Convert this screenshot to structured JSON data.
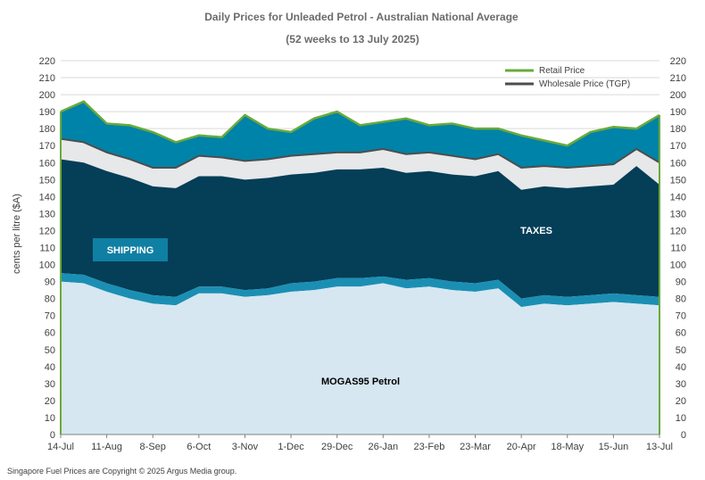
{
  "chart_data": {
    "type": "area",
    "title": "Daily  Prices for Unleaded  Petrol  - Australian  National  Average",
    "subtitle": "(52 weeks to 13 July  2025)",
    "ylabel": "cents per litre ($A)",
    "ylim": [
      0,
      220
    ],
    "yticks": [
      "0",
      "10",
      "20",
      "30",
      "40",
      "50",
      "60",
      "70",
      "80",
      "90",
      "100",
      "110",
      "120",
      "130",
      "140",
      "150",
      "160",
      "170",
      "180",
      "190",
      "200",
      "210",
      "220"
    ],
    "xtick_labels": [
      "14-Jul",
      "11-Aug",
      "8-Sep",
      "6-Oct",
      "3-Nov",
      "1-Dec",
      "29-Dec",
      "26-Jan",
      "23-Feb",
      "23-Mar",
      "20-Apr",
      "18-May",
      "15-Jun",
      "13-Jul"
    ],
    "x": [
      0,
      2,
      4,
      6,
      8,
      10,
      12,
      14,
      16,
      18,
      20,
      22,
      24,
      26,
      28,
      30,
      32,
      34,
      36,
      38,
      40,
      42,
      44,
      46,
      48,
      50,
      52
    ],
    "series": [
      {
        "name": "MOGAS95 Petrol",
        "values": [
          90,
          89,
          84,
          80,
          77,
          76,
          83,
          83,
          81,
          82,
          84,
          85,
          87,
          87,
          89,
          86,
          87,
          85,
          84,
          86,
          75,
          77,
          76,
          77,
          78,
          77,
          76
        ]
      },
      {
        "name": "SHIPPING",
        "values": [
          95,
          94,
          89,
          85,
          82,
          81,
          87,
          87,
          85,
          86,
          89,
          90,
          92,
          92,
          93,
          91,
          92,
          90,
          89,
          91,
          80,
          82,
          81,
          82,
          83,
          82,
          81
        ]
      },
      {
        "name": "Wholesale Price (TGP)",
        "values": [
          174,
          172,
          166,
          162,
          157,
          157,
          164,
          163,
          161,
          162,
          164,
          165,
          166,
          166,
          168,
          165,
          166,
          164,
          162,
          165,
          157,
          158,
          157,
          158,
          159,
          168,
          160
        ]
      },
      {
        "name": "TAXES",
        "values": [
          162,
          160,
          155,
          151,
          146,
          145,
          152,
          152,
          150,
          151,
          153,
          154,
          156,
          156,
          157,
          154,
          155,
          153,
          152,
          155,
          144,
          146,
          145,
          146,
          147,
          158,
          147
        ]
      },
      {
        "name": "Retail Price",
        "values": [
          190,
          196,
          183,
          182,
          178,
          172,
          176,
          175,
          188,
          180,
          178,
          186,
          190,
          182,
          184,
          186,
          182,
          183,
          180,
          180,
          176,
          173,
          170,
          178,
          181,
          180,
          188
        ]
      }
    ],
    "legend": {
      "position": "top-right",
      "entries": [
        {
          "label": "Retail Price",
          "color": "#6aaa3a"
        },
        {
          "label": "Wholesale Price (TGP)",
          "color": "#4d4d4d"
        }
      ]
    },
    "annotations": {
      "shipping": "SHIPPING",
      "taxes": "TAXES",
      "mogas": "MOGAS95 Petrol"
    },
    "colors": {
      "mogas": "#d6e7f1",
      "shipping": "#1b8fb3",
      "taxes": "#043e57",
      "margin_band": "#e7e8ea",
      "retail_band": "#0083a8",
      "retail_line": "#6aaa3a",
      "tgp_line": "#4d4d4d",
      "shipping_box": "#0f7fa3"
    },
    "grid": true
  },
  "footer": "Singapore  Fuel Prices are  Copyright © 2025 Argus Media  group."
}
